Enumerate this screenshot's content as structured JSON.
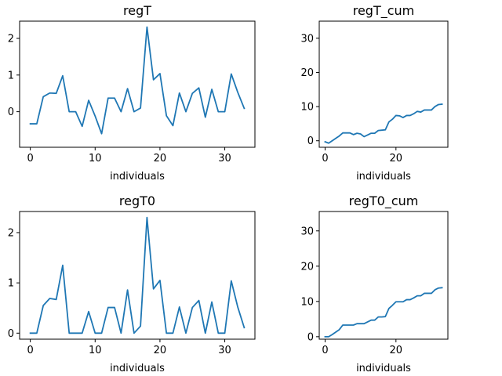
{
  "chart_data": [
    {
      "type": "line",
      "title": "regT",
      "xlabel": "individuals",
      "ylabel": "",
      "xlim": [
        -1.65,
        34.65
      ],
      "ylim": [
        -0.97,
        2.47
      ],
      "xticks": [
        0,
        10,
        20,
        30
      ],
      "yticks": [
        0,
        1,
        2
      ],
      "grid": false,
      "x": [
        0,
        1,
        2,
        3,
        4,
        5,
        6,
        7,
        8,
        9,
        10,
        11,
        12,
        13,
        14,
        15,
        16,
        17,
        18,
        19,
        20,
        21,
        22,
        23,
        24,
        25,
        26,
        27,
        28,
        29,
        30,
        31,
        32,
        33
      ],
      "series": [
        {
          "name": "",
          "color": "#1f77b4",
          "values": [
            -0.33,
            -0.33,
            0.41,
            0.51,
            0.5,
            0.98,
            0.0,
            0.0,
            -0.4,
            0.31,
            -0.12,
            -0.6,
            0.37,
            0.37,
            0.0,
            0.63,
            0.0,
            0.1,
            2.31,
            0.87,
            1.04,
            -0.11,
            -0.38,
            0.51,
            0.0,
            0.5,
            0.65,
            -0.15,
            0.61,
            0.0,
            0.0,
            1.03,
            0.53,
            0.09
          ]
        }
      ]
    },
    {
      "type": "line",
      "title": "regT_cum",
      "xlabel": "individuals",
      "ylabel": "",
      "xlim": [
        -1.65,
        34.65
      ],
      "ylim": [
        -1.9,
        35.0
      ],
      "xticks": [
        0,
        20
      ],
      "yticks": [
        0,
        10,
        20,
        30
      ],
      "grid": false,
      "x": [
        0,
        1,
        2,
        3,
        4,
        5,
        6,
        7,
        8,
        9,
        10,
        11,
        12,
        13,
        14,
        15,
        16,
        17,
        18,
        19,
        20,
        21,
        22,
        23,
        24,
        25,
        26,
        27,
        28,
        29,
        30,
        31,
        32,
        33
      ],
      "series": [
        {
          "name": "",
          "color": "#1f77b4",
          "values": [
            -0.3,
            -0.7,
            0.0,
            0.7,
            1.4,
            2.3,
            2.3,
            2.3,
            1.8,
            2.2,
            2.0,
            1.2,
            1.7,
            2.2,
            2.2,
            3.0,
            3.1,
            3.2,
            5.5,
            6.3,
            7.4,
            7.3,
            6.8,
            7.4,
            7.4,
            7.9,
            8.6,
            8.4,
            9.0,
            9.0,
            9.0,
            10.0,
            10.6,
            10.7
          ]
        }
      ]
    },
    {
      "type": "line",
      "title": "regT0",
      "xlabel": "individuals",
      "ylabel": "",
      "xlim": [
        -1.65,
        34.65
      ],
      "ylim": [
        -0.12,
        2.42
      ],
      "xticks": [
        0,
        10,
        20,
        30
      ],
      "yticks": [
        0,
        1,
        2
      ],
      "grid": false,
      "x": [
        0,
        1,
        2,
        3,
        4,
        5,
        6,
        7,
        8,
        9,
        10,
        11,
        12,
        13,
        14,
        15,
        16,
        17,
        18,
        19,
        20,
        21,
        22,
        23,
        24,
        25,
        26,
        27,
        28,
        29,
        30,
        31,
        32,
        33
      ],
      "series": [
        {
          "name": "",
          "color": "#1f77b4",
          "values": [
            0.0,
            0.0,
            0.55,
            0.69,
            0.67,
            1.35,
            0.0,
            0.0,
            0.0,
            0.43,
            0.0,
            0.0,
            0.51,
            0.51,
            0.0,
            0.86,
            0.0,
            0.14,
            2.3,
            0.88,
            1.05,
            0.0,
            0.0,
            0.52,
            0.0,
            0.51,
            0.65,
            0.0,
            0.62,
            0.0,
            0.0,
            1.04,
            0.52,
            0.11
          ]
        }
      ]
    },
    {
      "type": "line",
      "title": "regT0_cum",
      "xlabel": "individuals",
      "ylabel": "",
      "xlim": [
        -1.65,
        34.65
      ],
      "ylim": [
        -0.7,
        35.5
      ],
      "xticks": [
        0,
        20
      ],
      "yticks": [
        0,
        10,
        20,
        30
      ],
      "grid": false,
      "x": [
        0,
        1,
        2,
        3,
        4,
        5,
        6,
        7,
        8,
        9,
        10,
        11,
        12,
        13,
        14,
        15,
        16,
        17,
        18,
        19,
        20,
        21,
        22,
        23,
        24,
        25,
        26,
        27,
        28,
        29,
        30,
        31,
        32,
        33
      ],
      "series": [
        {
          "name": "",
          "color": "#1f77b4",
          "values": [
            0.0,
            0.0,
            0.6,
            1.3,
            2.0,
            3.3,
            3.3,
            3.3,
            3.3,
            3.7,
            3.7,
            3.7,
            4.2,
            4.7,
            4.7,
            5.6,
            5.6,
            5.7,
            8.0,
            8.9,
            9.9,
            9.9,
            9.9,
            10.5,
            10.5,
            11.0,
            11.6,
            11.6,
            12.3,
            12.3,
            12.3,
            13.3,
            13.8,
            13.9
          ]
        }
      ]
    }
  ]
}
